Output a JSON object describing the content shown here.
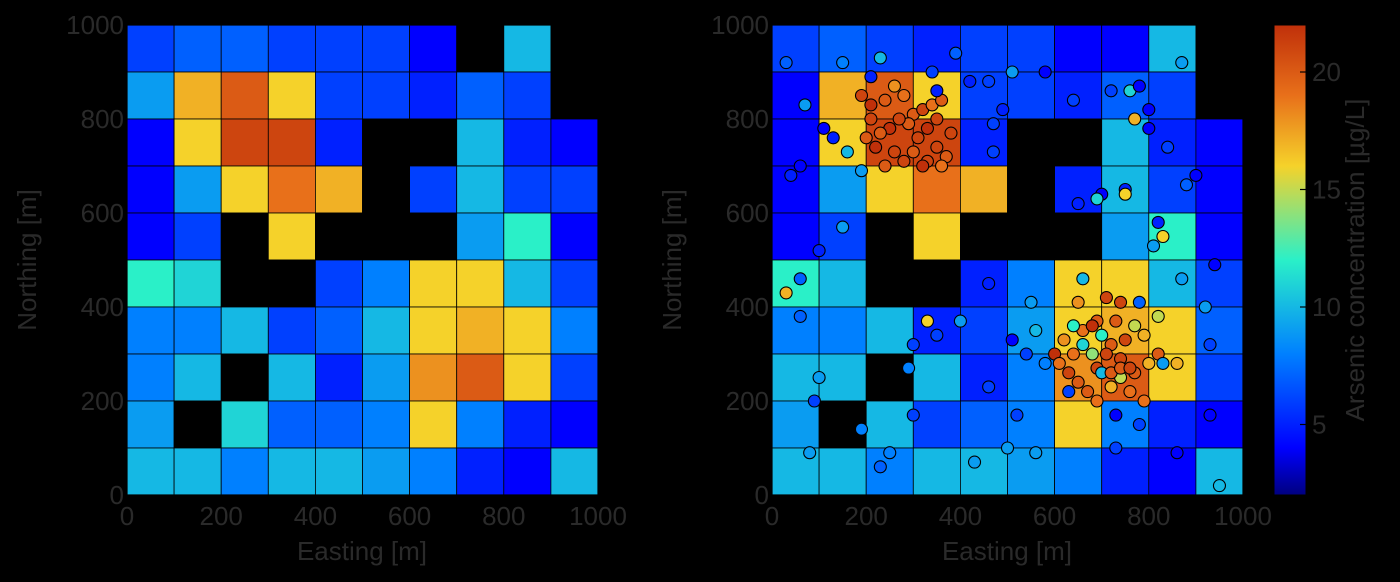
{
  "chart_data": [
    {
      "type": "heatmap",
      "xlabel": "Easting [m]",
      "ylabel": "Northing [m]",
      "xlim": [
        0,
        1000
      ],
      "ylim": [
        0,
        1000
      ],
      "xticks": [
        "0",
        "200",
        "400",
        "600",
        "800",
        "1000"
      ],
      "yticks": [
        "0",
        "200",
        "400",
        "600",
        "800",
        "1000"
      ],
      "cell_size": 100,
      "grid_rows_from_top": [
        [
          6,
          7,
          7,
          6,
          6,
          6,
          4,
          null,
          10,
          null
        ],
        [
          9,
          17,
          20,
          16,
          6,
          6,
          5,
          7,
          6,
          null
        ],
        [
          4,
          16,
          21,
          21,
          5,
          null,
          null,
          10,
          5,
          4
        ],
        [
          4,
          9,
          16,
          19,
          17,
          null,
          6,
          10,
          6,
          6
        ],
        [
          4,
          6,
          null,
          16,
          null,
          null,
          null,
          9,
          12,
          4
        ],
        [
          12,
          11,
          null,
          null,
          6,
          8,
          16,
          16,
          10,
          6
        ],
        [
          8,
          8,
          10,
          6,
          7,
          10,
          16,
          17,
          16,
          8
        ],
        [
          8,
          10,
          null,
          10,
          5,
          9,
          18,
          20,
          16,
          6
        ],
        [
          9,
          null,
          11,
          7,
          7,
          8,
          16,
          8,
          5,
          4
        ],
        [
          10,
          10,
          8,
          10,
          10,
          9,
          8,
          5,
          4,
          10
        ]
      ]
    },
    {
      "type": "heatmap",
      "xlabel": "Easting [m]",
      "ylabel": "Northing [m]",
      "xlim": [
        0,
        1000
      ],
      "ylim": [
        0,
        1000
      ],
      "xticks": [
        "0",
        "200",
        "400",
        "600",
        "800",
        "1000"
      ],
      "yticks": [
        "0",
        "200",
        "400",
        "600",
        "800",
        "1000"
      ],
      "cell_size": 100,
      "grid_rows_from_top": [
        [
          6,
          7,
          6,
          5,
          6,
          6,
          4,
          4,
          10,
          null
        ],
        [
          4,
          17,
          20,
          16,
          6,
          6,
          5,
          7,
          6,
          null
        ],
        [
          4,
          16,
          21,
          21,
          5,
          null,
          null,
          10,
          5,
          4
        ],
        [
          4,
          9,
          16,
          19,
          17,
          null,
          5,
          10,
          6,
          4
        ],
        [
          4,
          6,
          null,
          16,
          null,
          null,
          null,
          9,
          12,
          4
        ],
        [
          12,
          10,
          null,
          null,
          5,
          8,
          16,
          16,
          10,
          6
        ],
        [
          8,
          8,
          10,
          5,
          6,
          9,
          16,
          17,
          16,
          7
        ],
        [
          10,
          10,
          null,
          10,
          5,
          8,
          18,
          20,
          16,
          6
        ],
        [
          9,
          null,
          10,
          6,
          7,
          8,
          16,
          8,
          5,
          4
        ],
        [
          10,
          10,
          8,
          10,
          10,
          9,
          8,
          5,
          4,
          10
        ]
      ],
      "samples": [
        [
          30,
          920,
          7
        ],
        [
          70,
          830,
          9
        ],
        [
          60,
          700,
          4
        ],
        [
          40,
          680,
          5
        ],
        [
          110,
          780,
          4
        ],
        [
          130,
          760,
          5
        ],
        [
          100,
          520,
          5
        ],
        [
          150,
          570,
          9
        ],
        [
          160,
          730,
          10
        ],
        [
          190,
          690,
          9
        ],
        [
          150,
          920,
          8
        ],
        [
          230,
          930,
          10
        ],
        [
          210,
          890,
          5
        ],
        [
          260,
          870,
          18
        ],
        [
          190,
          850,
          21
        ],
        [
          210,
          830,
          22
        ],
        [
          240,
          840,
          20
        ],
        [
          280,
          850,
          19
        ],
        [
          300,
          810,
          20
        ],
        [
          320,
          820,
          21
        ],
        [
          340,
          830,
          19
        ],
        [
          360,
          840,
          20
        ],
        [
          350,
          800,
          21
        ],
        [
          330,
          780,
          22
        ],
        [
          310,
          760,
          21
        ],
        [
          290,
          790,
          20
        ],
        [
          270,
          800,
          21
        ],
        [
          250,
          780,
          22
        ],
        [
          230,
          770,
          20
        ],
        [
          210,
          800,
          21
        ],
        [
          200,
          760,
          20
        ],
        [
          220,
          740,
          22
        ],
        [
          260,
          730,
          21
        ],
        [
          300,
          730,
          20
        ],
        [
          330,
          710,
          21
        ],
        [
          350,
          740,
          21
        ],
        [
          370,
          720,
          20
        ],
        [
          380,
          770,
          21
        ],
        [
          360,
          700,
          19
        ],
        [
          320,
          700,
          22
        ],
        [
          280,
          710,
          21
        ],
        [
          240,
          700,
          20
        ],
        [
          350,
          860,
          5
        ],
        [
          390,
          940,
          7
        ],
        [
          340,
          900,
          6
        ],
        [
          420,
          880,
          5
        ],
        [
          460,
          880,
          6
        ],
        [
          470,
          790,
          6
        ],
        [
          470,
          730,
          6
        ],
        [
          490,
          820,
          5
        ],
        [
          510,
          900,
          9
        ],
        [
          580,
          900,
          4
        ],
        [
          640,
          840,
          6
        ],
        [
          720,
          860,
          6
        ],
        [
          760,
          860,
          11
        ],
        [
          780,
          870,
          4
        ],
        [
          800,
          820,
          4
        ],
        [
          800,
          780,
          4
        ],
        [
          840,
          740,
          6
        ],
        [
          870,
          920,
          9
        ],
        [
          880,
          660,
          7
        ],
        [
          900,
          680,
          4
        ],
        [
          700,
          640,
          4
        ],
        [
          750,
          650,
          5
        ],
        [
          750,
          640,
          16
        ],
        [
          770,
          800,
          17
        ],
        [
          650,
          620,
          5
        ],
        [
          690,
          630,
          11
        ],
        [
          820,
          580,
          5
        ],
        [
          830,
          550,
          16
        ],
        [
          810,
          530,
          9
        ],
        [
          870,
          460,
          9
        ],
        [
          940,
          490,
          4
        ],
        [
          920,
          400,
          9
        ],
        [
          930,
          320,
          6
        ],
        [
          930,
          170,
          4
        ],
        [
          950,
          20,
          10
        ],
        [
          860,
          90,
          4
        ],
        [
          780,
          150,
          6
        ],
        [
          730,
          170,
          4
        ],
        [
          660,
          460,
          10
        ],
        [
          650,
          410,
          18
        ],
        [
          690,
          370,
          20
        ],
        [
          710,
          420,
          21
        ],
        [
          740,
          410,
          21
        ],
        [
          780,
          410,
          7
        ],
        [
          770,
          360,
          15
        ],
        [
          790,
          340,
          17
        ],
        [
          820,
          300,
          20
        ],
        [
          800,
          280,
          17
        ],
        [
          770,
          260,
          20
        ],
        [
          740,
          290,
          21
        ],
        [
          720,
          320,
          20
        ],
        [
          700,
          340,
          12
        ],
        [
          680,
          300,
          14
        ],
        [
          660,
          320,
          11
        ],
        [
          640,
          300,
          19
        ],
        [
          630,
          260,
          21
        ],
        [
          650,
          240,
          20
        ],
        [
          670,
          220,
          20
        ],
        [
          690,
          200,
          19
        ],
        [
          720,
          230,
          17
        ],
        [
          740,
          250,
          15
        ],
        [
          760,
          220,
          19
        ],
        [
          790,
          200,
          19
        ],
        [
          820,
          380,
          15
        ],
        [
          860,
          280,
          17
        ],
        [
          830,
          280,
          9
        ],
        [
          660,
          350,
          19
        ],
        [
          680,
          360,
          22
        ],
        [
          710,
          300,
          21
        ],
        [
          730,
          370,
          20
        ],
        [
          750,
          330,
          21
        ],
        [
          690,
          270,
          21
        ],
        [
          700,
          260,
          10
        ],
        [
          720,
          260,
          20
        ],
        [
          740,
          270,
          20
        ],
        [
          760,
          270,
          21
        ],
        [
          640,
          360,
          12
        ],
        [
          620,
          330,
          18
        ],
        [
          600,
          300,
          22
        ],
        [
          610,
          280,
          19
        ],
        [
          630,
          220,
          6
        ],
        [
          560,
          350,
          10
        ],
        [
          550,
          410,
          9
        ],
        [
          540,
          300,
          6
        ],
        [
          510,
          330,
          4
        ],
        [
          520,
          170,
          6
        ],
        [
          500,
          100,
          9
        ],
        [
          430,
          70,
          9
        ],
        [
          560,
          90,
          9
        ],
        [
          460,
          230,
          6
        ],
        [
          460,
          450,
          5
        ],
        [
          400,
          370,
          9
        ],
        [
          330,
          370,
          16
        ],
        [
          350,
          340,
          6
        ],
        [
          300,
          320,
          6
        ],
        [
          290,
          270,
          8
        ],
        [
          300,
          170,
          6
        ],
        [
          250,
          90,
          8
        ],
        [
          230,
          60,
          7
        ],
        [
          190,
          140,
          8
        ],
        [
          80,
          90,
          9
        ],
        [
          90,
          200,
          6
        ],
        [
          100,
          250,
          9
        ],
        [
          60,
          380,
          7
        ],
        [
          30,
          430,
          17
        ],
        [
          60,
          460,
          7
        ],
        [
          730,
          100,
          6
        ],
        [
          580,
          280,
          8
        ]
      ]
    }
  ],
  "colorbar": {
    "label": "Arsenic concentration [µg/L]",
    "range": [
      2,
      22
    ],
    "ticks": [
      "5",
      "10",
      "15",
      "20"
    ],
    "tick_values": [
      5,
      10,
      15,
      20
    ]
  }
}
